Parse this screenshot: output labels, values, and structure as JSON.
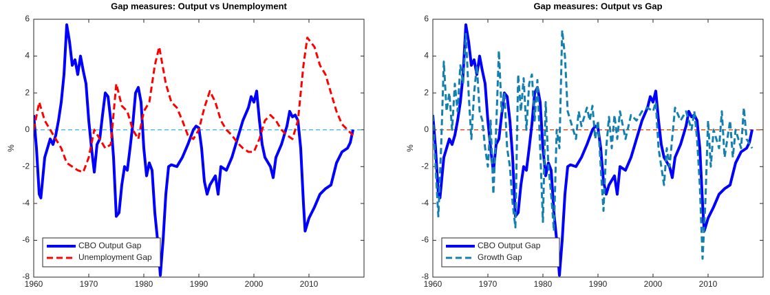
{
  "chart_data": [
    {
      "type": "line",
      "title": "Gap measures: Output vs Unemployment",
      "ylabel": "%",
      "xlim": [
        1960,
        2020
      ],
      "xticks": [
        1960,
        1970,
        1980,
        1990,
        2000,
        2010
      ],
      "ylim": [
        -8,
        6
      ],
      "yticks": [
        -8,
        -6,
        -4,
        -2,
        0,
        2,
        4,
        6
      ],
      "hline": {
        "value": 0,
        "color": "#4dbeee"
      },
      "legend": "lower-left",
      "series": [
        {
          "name": "CBO Output Gap",
          "color": "#0000ff",
          "style": "solid",
          "width": 4,
          "x": [
            1960,
            1960.5,
            1961,
            1961.3,
            1962,
            1963,
            1963.5,
            1964,
            1964.5,
            1965,
            1965.5,
            1966,
            1966.5,
            1967,
            1967.5,
            1968,
            1968.5,
            1969,
            1969.5,
            1970,
            1970.5,
            1971,
            1971.5,
            1972,
            1972.5,
            1973,
            1973.5,
            1974,
            1974.5,
            1975,
            1975.5,
            1976,
            1976.5,
            1977,
            1977.5,
            1978,
            1978.5,
            1979,
            1979.5,
            1980,
            1980.5,
            1981,
            1981.5,
            1982,
            1982.5,
            1983,
            1983.5,
            1984,
            1984.5,
            1985,
            1986,
            1987,
            1988,
            1989,
            1989.5,
            1990,
            1990.5,
            1991,
            1991.5,
            1992,
            1993,
            1993.5,
            1994,
            1995,
            1996,
            1997,
            1998,
            1999,
            1999.5,
            2000,
            2000.5,
            2001,
            2001.5,
            2002,
            2003,
            2003.5,
            2004,
            2005,
            2006,
            2006.5,
            2007,
            2007.5,
            2008,
            2008.5,
            2009,
            2009.3,
            2010,
            2010.5,
            2011,
            2012,
            2013,
            2014,
            2015,
            2016,
            2017,
            2017.5,
            2018
          ],
          "values": [
            0.8,
            -1,
            -3.5,
            -3.7,
            -1.5,
            -0.5,
            -0.8,
            -0.3,
            0.5,
            1.5,
            3,
            5.7,
            4.8,
            3.5,
            3.8,
            3,
            4,
            3.2,
            2.5,
            0.5,
            -1,
            -2.3,
            -0.8,
            -0.5,
            0.8,
            2,
            1.8,
            0.5,
            -1.5,
            -4.7,
            -4.5,
            -3,
            -2,
            -2.2,
            -1,
            0.3,
            2,
            2.3,
            1.5,
            -1,
            -2.5,
            -1.8,
            -2.2,
            -4.5,
            -6,
            -7.9,
            -6,
            -3.5,
            -2,
            -1.9,
            -2,
            -1.5,
            -0.8,
            0,
            0.2,
            0.1,
            -1,
            -2.8,
            -3.5,
            -3,
            -2.5,
            -3.5,
            -2,
            -2.2,
            -1.5,
            -0.5,
            0.5,
            1.2,
            1.8,
            1.5,
            2.1,
            0.5,
            -0.8,
            -1.5,
            -2,
            -2.6,
            -1.5,
            -0.8,
            0.2,
            1,
            0.7,
            0.8,
            0.5,
            -1,
            -4,
            -5.5,
            -4.8,
            -4.5,
            -4.2,
            -3.5,
            -3.2,
            -3,
            -1.8,
            -1.2,
            -1,
            -0.7,
            0
          ]
        },
        {
          "name": "Unemployment Gap",
          "color": "#ff0000",
          "style": "dashed",
          "width": 3,
          "x": [
            1960,
            1961,
            1962,
            1963,
            1964,
            1965,
            1966,
            1967,
            1968,
            1969,
            1970,
            1971,
            1972,
            1973,
            1974,
            1975,
            1976,
            1977,
            1978,
            1979,
            1980,
            1981,
            1982,
            1982.8,
            1984,
            1985,
            1986,
            1987,
            1988,
            1989,
            1990,
            1991,
            1992,
            1993,
            1994,
            1995,
            1996,
            1997,
            1998,
            1999,
            2000,
            2001,
            2002,
            2003,
            2004,
            2005,
            2006,
            2007,
            2008,
            2009,
            2009.7,
            2011,
            2012,
            2013,
            2014,
            2015,
            2016,
            2017,
            2018
          ],
          "values": [
            0,
            1.5,
            0.5,
            0,
            -0.5,
            -1,
            -1.8,
            -2,
            -2.2,
            -2.3,
            -1.5,
            0,
            -0.5,
            -1,
            -0.8,
            2.5,
            1.3,
            1,
            0,
            -0.5,
            1,
            1.5,
            3.5,
            4.5,
            2.5,
            1.5,
            1.2,
            0.5,
            -0.3,
            -0.5,
            0,
            1.2,
            2.1,
            1.5,
            0.5,
            0,
            -0.3,
            -0.7,
            -1,
            -1.2,
            -1.2,
            -0.5,
            0.5,
            0.8,
            0.5,
            0,
            -0.3,
            -0.5,
            0.5,
            3.5,
            5,
            4.5,
            3.5,
            3,
            2,
            1,
            0.3,
            0,
            -0.3
          ]
        }
      ]
    },
    {
      "type": "line",
      "title": "Gap measures: Output vs Gap",
      "ylabel": "%",
      "xlim": [
        1960,
        2020
      ],
      "xticks": [
        1960,
        1970,
        1980,
        1990,
        2000,
        2010
      ],
      "ylim": [
        -8,
        6
      ],
      "yticks": [
        -8,
        -6,
        -4,
        -2,
        0,
        2,
        4,
        6
      ],
      "hline": {
        "value": 0,
        "color": "#d95319"
      },
      "legend": "lower-left",
      "series": [
        {
          "name": "CBO Output Gap",
          "color": "#0000ff",
          "style": "solid",
          "width": 4,
          "x": [
            1960,
            1960.5,
            1961,
            1961.3,
            1962,
            1963,
            1963.5,
            1964,
            1964.5,
            1965,
            1965.5,
            1966,
            1966.5,
            1967,
            1967.5,
            1968,
            1968.5,
            1969,
            1969.5,
            1970,
            1970.5,
            1971,
            1971.5,
            1972,
            1972.5,
            1973,
            1973.5,
            1974,
            1974.5,
            1975,
            1975.5,
            1976,
            1976.5,
            1977,
            1977.5,
            1978,
            1978.5,
            1979,
            1979.5,
            1980,
            1980.5,
            1981,
            1981.5,
            1982,
            1982.5,
            1983,
            1983.5,
            1984,
            1984.5,
            1985,
            1986,
            1987,
            1988,
            1989,
            1989.5,
            1990,
            1990.5,
            1991,
            1991.5,
            1992,
            1993,
            1993.5,
            1994,
            1995,
            1996,
            1997,
            1998,
            1999,
            1999.5,
            2000,
            2000.5,
            2001,
            2001.5,
            2002,
            2003,
            2003.5,
            2004,
            2005,
            2006,
            2006.5,
            2007,
            2007.5,
            2008,
            2008.5,
            2009,
            2009.3,
            2010,
            2010.5,
            2011,
            2012,
            2013,
            2014,
            2015,
            2016,
            2017,
            2017.5,
            2018
          ],
          "values": [
            0.8,
            -1,
            -3.5,
            -3.7,
            -1.5,
            -0.5,
            -0.8,
            -0.3,
            0.5,
            1.5,
            3,
            5.7,
            4.8,
            3.5,
            3.8,
            3,
            4,
            3.2,
            2.5,
            0.5,
            -1,
            -2.3,
            -0.8,
            -0.5,
            0.8,
            2,
            1.8,
            0.5,
            -1.5,
            -4.7,
            -4.5,
            -3,
            -2,
            -2.2,
            -1,
            0.3,
            2,
            2.3,
            1.5,
            -1,
            -2.5,
            -1.8,
            -2.2,
            -4.5,
            -6,
            -7.9,
            -6,
            -3.5,
            -2,
            -1.9,
            -2,
            -1.5,
            -0.8,
            0,
            0.2,
            0.1,
            -1,
            -2.8,
            -3.5,
            -3,
            -2.5,
            -3.5,
            -2,
            -2.2,
            -1.5,
            -0.5,
            0.5,
            1.2,
            1.8,
            1.5,
            2.1,
            0.5,
            -0.8,
            -1.5,
            -2,
            -2.6,
            -1.5,
            -0.8,
            0.2,
            1,
            0.7,
            0.8,
            0.5,
            -1,
            -4,
            -5.5,
            -4.8,
            -4.5,
            -4.2,
            -3.5,
            -3.2,
            -3,
            -1.8,
            -1.2,
            -1,
            -0.7,
            0
          ]
        },
        {
          "name": "Growth Gap",
          "color": "#1380b0",
          "style": "dashed",
          "width": 3,
          "x": [
            1960,
            1960.5,
            1961,
            1961.5,
            1962,
            1962.5,
            1963,
            1963.5,
            1964,
            1964.5,
            1965,
            1965.5,
            1966,
            1966.5,
            1967,
            1967.5,
            1968,
            1968.5,
            1969,
            1969.5,
            1970,
            1970.5,
            1971,
            1971.5,
            1972,
            1972.5,
            1973,
            1973.5,
            1974,
            1974.5,
            1975,
            1975.5,
            1976,
            1976.5,
            1977,
            1977.5,
            1978,
            1978.5,
            1979,
            1979.5,
            1980,
            1980.5,
            1981,
            1981.5,
            1982,
            1982.5,
            1983,
            1983.5,
            1984,
            1984.5,
            1985,
            1986,
            1986.5,
            1987,
            1988,
            1988.5,
            1989,
            1989.5,
            1990,
            1990.5,
            1991,
            1991.5,
            1992,
            1992.5,
            1993,
            1993.5,
            1994,
            1995,
            1996,
            1997,
            1998,
            1999,
            2000,
            2000.5,
            2001,
            2002,
            2002.5,
            2003,
            2004,
            2005,
            2006,
            2007,
            2007.5,
            2008,
            2008.5,
            2009,
            2009.5,
            2010,
            2010.5,
            2011,
            2012,
            2012.5,
            2013,
            2014,
            2014.5,
            2015,
            2016,
            2016.5,
            2017,
            2018
          ],
          "values": [
            0.8,
            -2,
            -4.7,
            -1,
            3.7,
            1,
            2,
            0,
            2.5,
            1,
            3.5,
            2.5,
            5.2,
            2,
            -0.5,
            2,
            3.5,
            1,
            0.5,
            -1,
            -2,
            0.5,
            -3.5,
            0,
            4.3,
            1,
            2,
            -1,
            -2,
            -4,
            -5.3,
            3,
            1,
            2.8,
            0,
            2.5,
            3,
            0.5,
            2.7,
            -1,
            -5,
            1.5,
            -2,
            -3.5,
            -5.5,
            0,
            -1,
            5.4,
            4,
            1,
            0.5,
            -0.5,
            1,
            0.2,
            1.2,
            0.5,
            1.3,
            -0.5,
            0.5,
            -2,
            -4.4,
            -1,
            0.7,
            -1,
            0.8,
            -0.5,
            1,
            -0.5,
            0.8,
            0.5,
            1,
            1.2,
            1,
            1.5,
            -1,
            -3,
            -1,
            -2,
            1.2,
            0.5,
            1,
            0,
            1,
            -0.5,
            -3,
            -7,
            -4,
            0.5,
            -2,
            0,
            -1,
            1,
            -1.5,
            0.5,
            -1.5,
            0,
            -1,
            1.2,
            -0.5,
            -1
          ]
        }
      ]
    }
  ]
}
